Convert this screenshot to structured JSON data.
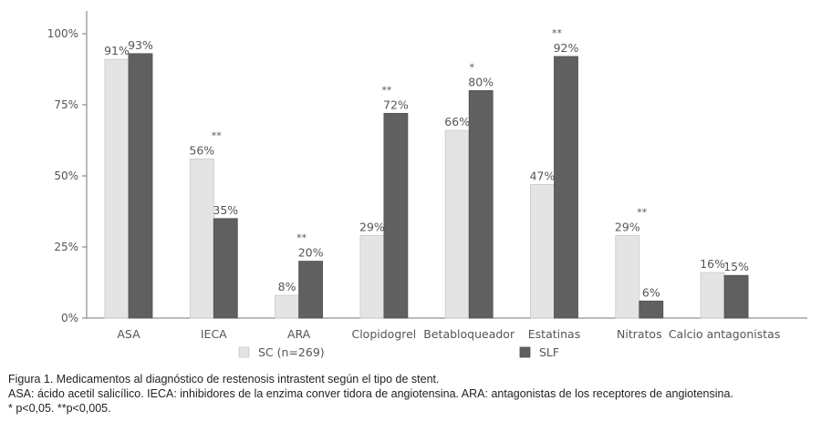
{
  "chart_data": {
    "type": "bar",
    "categories": [
      "ASA",
      "IECA",
      "ARA",
      "Clopidogrel",
      "Betabloqueador",
      "Estatinas",
      "Nitratos",
      "Calcio antagonistas"
    ],
    "series": [
      {
        "name": "SC (n=269)",
        "color": "#e4e4e4",
        "values": [
          91,
          56,
          8,
          29,
          66,
          47,
          29,
          16
        ],
        "labels": [
          "91%",
          "56%",
          "8%",
          "29%",
          "66%",
          "47%",
          "29%",
          "16%"
        ]
      },
      {
        "name": "SLF",
        "color": "#606060",
        "values": [
          93,
          35,
          20,
          72,
          80,
          92,
          6,
          15
        ],
        "labels": [
          "93%",
          "35%",
          "20%",
          "72%",
          "80%",
          "92%",
          "6%",
          "15%"
        ]
      }
    ],
    "significance": [
      "",
      "**",
      "**",
      "**",
      "*",
      "**",
      "**",
      ""
    ],
    "yticks": [
      "0%",
      "25%",
      "50%",
      "75%",
      "100%"
    ],
    "ylim": [
      0,
      100
    ],
    "grid": false,
    "legend_position": "bottom"
  },
  "caption": {
    "figure_label": "Figura 1",
    "title_rest": ". Medicamentos al diagnóstico de restenosis intrastent según el tipo de stent.",
    "abbreviations": "ASA: ácido acetil salicílico. IECA: inhibidores de la enzima conver tidora de angiotensina. ARA: antagonistas de los receptores de angiotensina.",
    "significance_note": "* p<0,05. **p<0,005."
  }
}
